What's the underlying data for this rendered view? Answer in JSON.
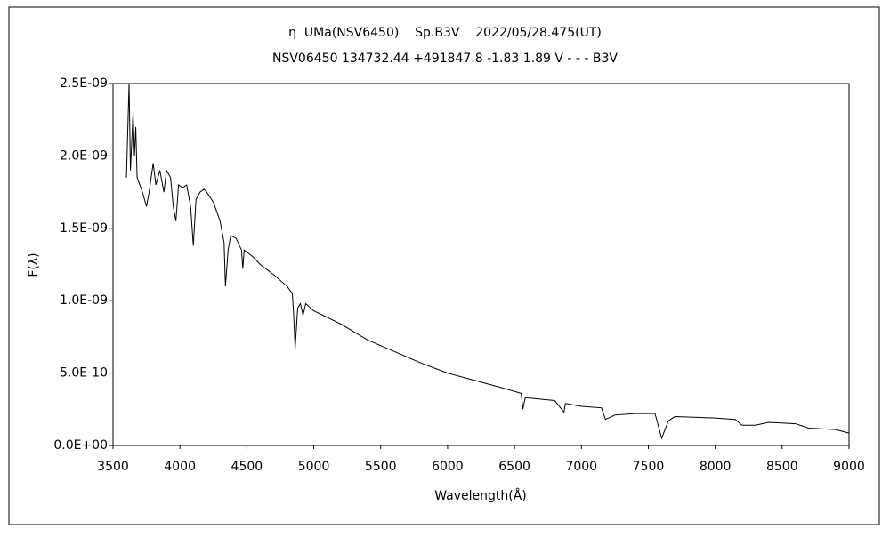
{
  "chart_data": {
    "type": "line",
    "title": "η  UMa(NSV6450)    Sp.B3V    2022/05/28.475(UT)",
    "subtitle": "NSV06450 134732.44 +491847.8 -1.83 1.89 V - - - B3V",
    "x_label": "Wavelength(Å)",
    "y_label": "F(λ)",
    "xlim": [
      3500,
      9000
    ],
    "xticks": [
      3500,
      4000,
      4500,
      5000,
      5500,
      6000,
      6500,
      7000,
      7500,
      8000,
      8500,
      9000
    ],
    "ylim": [
      0,
      2.5e-09
    ],
    "yticks": [
      {
        "value": 0,
        "label": "0.0E+00"
      },
      {
        "value": 5e-10,
        "label": "5.0E-10"
      },
      {
        "value": 1e-09,
        "label": "1.0E-09"
      },
      {
        "value": 1.5e-09,
        "label": "1.5E-09"
      },
      {
        "value": 2e-09,
        "label": "2.0E-09"
      },
      {
        "value": 2.5e-09,
        "label": "2.5E-09"
      }
    ],
    "grid": false,
    "series": [
      {
        "color": "#000000",
        "x": [
          3600,
          3620,
          3630,
          3650,
          3660,
          3670,
          3680,
          3700,
          3720,
          3750,
          3770,
          3800,
          3820,
          3850,
          3880,
          3900,
          3930,
          3950,
          3970,
          3990,
          4020,
          4050,
          4080,
          4100,
          4120,
          4150,
          4180,
          4200,
          4250,
          4300,
          4330,
          4340,
          4360,
          4380,
          4420,
          4460,
          4470,
          4480,
          4550,
          4600,
          4700,
          4800,
          4840,
          4850,
          4861,
          4880,
          4900,
          4920,
          4940,
          5000,
          5200,
          5400,
          5600,
          5800,
          6000,
          6200,
          6400,
          6550,
          6563,
          6580,
          6800,
          6870,
          6880,
          7000,
          7150,
          7180,
          7250,
          7400,
          7550,
          7600,
          7650,
          7700,
          8000,
          8150,
          8200,
          8300,
          8400,
          8600,
          8700,
          8900,
          9000
        ],
        "values": [
          1.85e-09,
          2.5e-09,
          1.9e-09,
          2.3e-09,
          2e-09,
          2.2e-09,
          1.85e-09,
          1.8e-09,
          1.75e-09,
          1.65e-09,
          1.75e-09,
          1.95e-09,
          1.8e-09,
          1.9e-09,
          1.75e-09,
          1.9e-09,
          1.85e-09,
          1.65e-09,
          1.55e-09,
          1.8e-09,
          1.78e-09,
          1.8e-09,
          1.65e-09,
          1.38e-09,
          1.7e-09,
          1.75e-09,
          1.77e-09,
          1.75e-09,
          1.68e-09,
          1.55e-09,
          1.4e-09,
          1.1e-09,
          1.35e-09,
          1.45e-09,
          1.43e-09,
          1.35e-09,
          1.22e-09,
          1.35e-09,
          1.3e-09,
          1.25e-09,
          1.18e-09,
          1.1e-09,
          1.05e-09,
          9e-10,
          6.7e-10,
          9.5e-10,
          9.8e-10,
          9e-10,
          9.8e-10,
          9.3e-10,
          8.4e-10,
          7.3e-10,
          6.5e-10,
          5.7e-10,
          5e-10,
          4.5e-10,
          4e-10,
          3.6e-10,
          2.5e-10,
          3.3e-10,
          3.1e-10,
          2.3e-10,
          2.9e-10,
          2.7e-10,
          2.6e-10,
          1.8e-10,
          2.1e-10,
          2.2e-10,
          2.2e-10,
          5e-11,
          1.7e-10,
          2e-10,
          1.9e-10,
          1.8e-10,
          1.4e-10,
          1.4e-10,
          1.6e-10,
          1.5e-10,
          1.2e-10,
          1.1e-10,
          8.5e-11
        ]
      }
    ]
  }
}
